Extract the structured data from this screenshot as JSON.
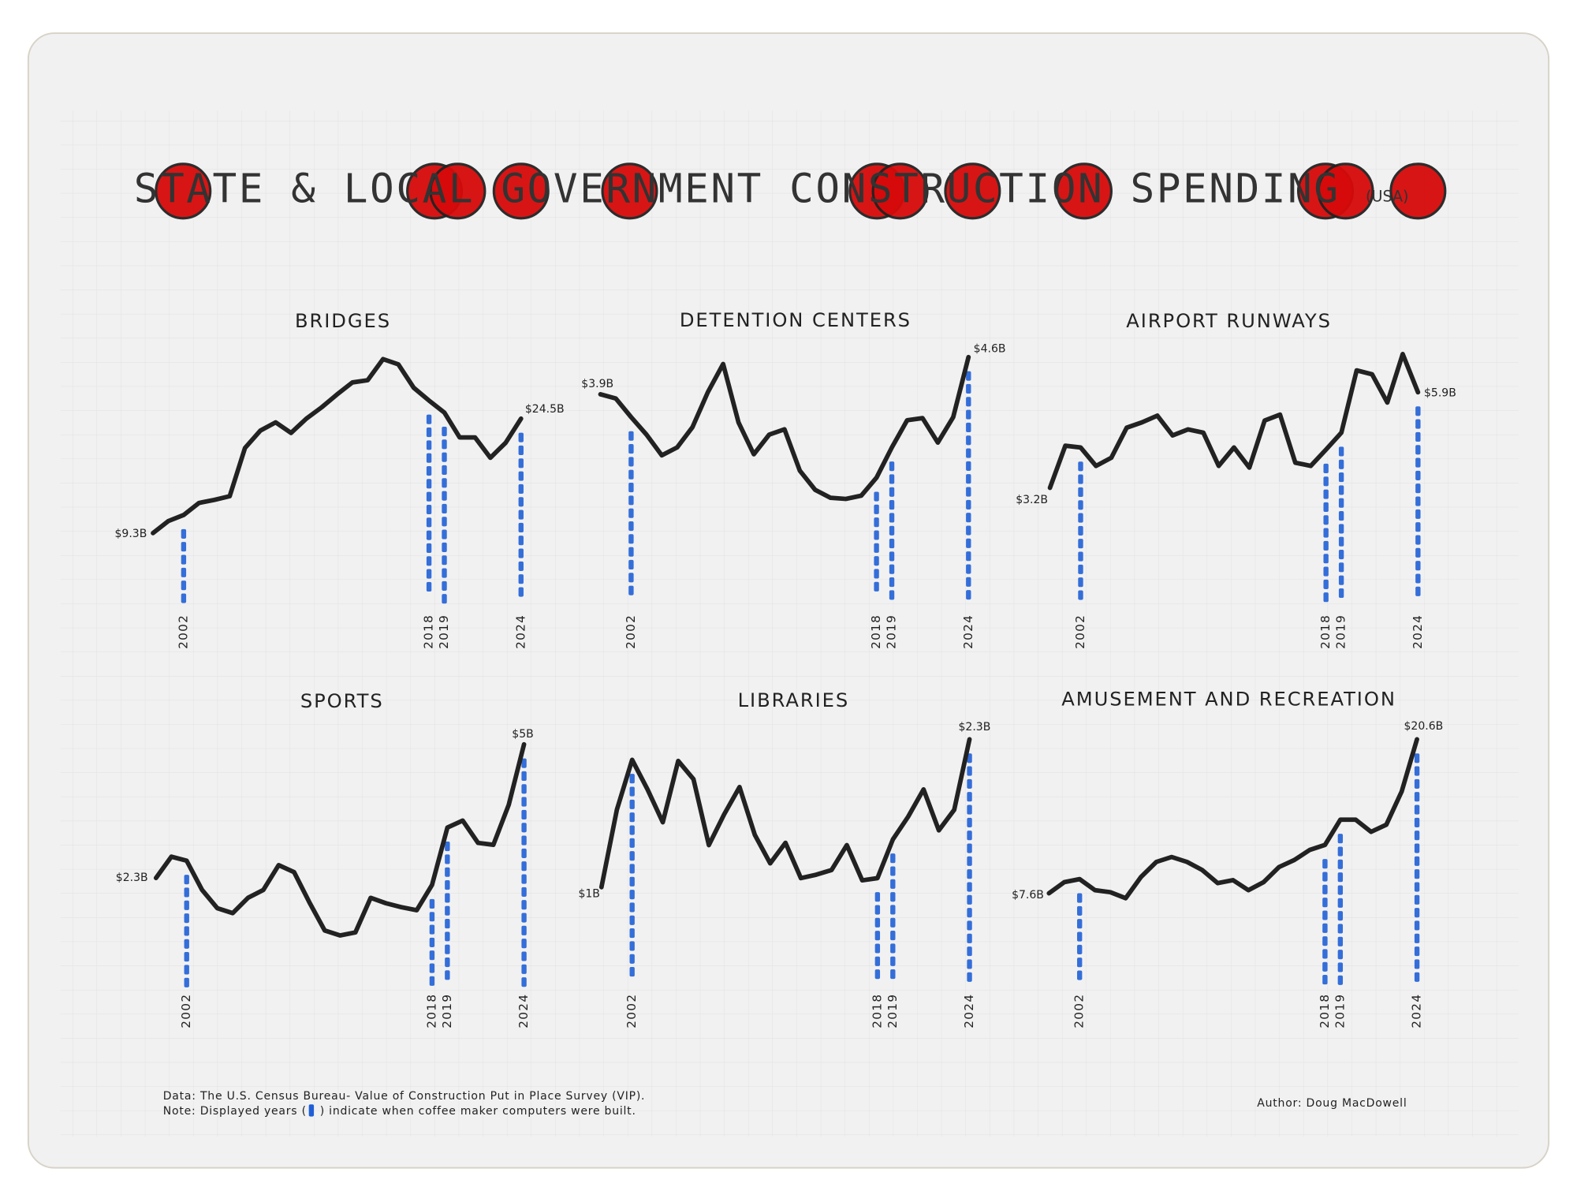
{
  "header": {
    "title": "STATE & LOCAL GOVERNMENT CONSTRUCTION SPENDING",
    "suffix": "(USA)"
  },
  "chart_data": [
    {
      "type": "line",
      "title": "BRIDGES",
      "color": "#222222",
      "year_color": "#1f5fd6",
      "categories": [
        null,
        null,
        "2002",
        null,
        null,
        null,
        null,
        null,
        null,
        null,
        null,
        null,
        null,
        null,
        null,
        null,
        null,
        null,
        "2018",
        "2019",
        null,
        null,
        null,
        null,
        "2024"
      ],
      "values": [
        9.3,
        10.9,
        11.7,
        13.3,
        13.7,
        14.2,
        20.6,
        22.9,
        24.0,
        22.6,
        24.5,
        26.0,
        27.7,
        29.3,
        29.6,
        32.4,
        31.7,
        28.6,
        26.9,
        25.3,
        22.0,
        22.0,
        19.3,
        21.3,
        24.5
      ],
      "value_labels": [
        "$9.3B",
        null,
        null,
        null,
        null,
        null,
        null,
        null,
        null,
        null,
        null,
        null,
        null,
        null,
        null,
        null,
        null,
        null,
        null,
        null,
        null,
        null,
        null,
        null,
        "$24.5B"
      ]
    },
    {
      "type": "line",
      "title": "DETENTION CENTERS",
      "color": "#222222",
      "year_color": "#1f5fd6",
      "categories": [
        null,
        null,
        "2002",
        null,
        null,
        null,
        null,
        null,
        null,
        null,
        null,
        null,
        null,
        null,
        null,
        null,
        null,
        null,
        "2018",
        "2019",
        null,
        null,
        null,
        null,
        "2024"
      ],
      "values": [
        3.9,
        3.82,
        3.47,
        3.14,
        2.75,
        2.9,
        3.28,
        3.94,
        4.47,
        3.37,
        2.77,
        3.14,
        3.24,
        2.46,
        2.1,
        1.95,
        1.93,
        1.99,
        2.33,
        2.9,
        3.41,
        3.45,
        2.99,
        3.47,
        4.6
      ],
      "value_labels": [
        "$3.9B",
        null,
        null,
        null,
        null,
        null,
        null,
        null,
        null,
        null,
        null,
        null,
        null,
        null,
        null,
        null,
        null,
        null,
        null,
        null,
        null,
        null,
        null,
        null,
        "$4.6B"
      ]
    },
    {
      "type": "line",
      "title": "AIRPORT RUNWAYS",
      "color": "#222222",
      "year_color": "#1f5fd6",
      "categories": [
        null,
        null,
        "2002",
        null,
        null,
        null,
        null,
        null,
        null,
        null,
        null,
        null,
        null,
        null,
        null,
        null,
        null,
        null,
        "2018",
        "2019",
        null,
        null,
        null,
        null,
        "2024"
      ],
      "values": [
        3.2,
        4.39,
        4.34,
        3.82,
        4.05,
        4.9,
        5.05,
        5.24,
        4.68,
        4.85,
        4.76,
        3.82,
        4.34,
        3.77,
        5.1,
        5.27,
        3.91,
        3.82,
        4.28,
        4.76,
        6.52,
        6.41,
        5.61,
        6.98,
        5.9
      ],
      "value_labels": [
        "$3.2B",
        null,
        null,
        null,
        null,
        null,
        null,
        null,
        null,
        null,
        null,
        null,
        null,
        null,
        null,
        null,
        null,
        null,
        null,
        null,
        null,
        null,
        null,
        null,
        "$5.9B"
      ]
    },
    {
      "type": "line",
      "title": "SPORTS",
      "color": "#222222",
      "year_color": "#1f5fd6",
      "categories": [
        null,
        null,
        "2002",
        null,
        null,
        null,
        null,
        null,
        null,
        null,
        null,
        null,
        null,
        null,
        null,
        null,
        null,
        null,
        "2018",
        "2019",
        null,
        null,
        null,
        null,
        "2024"
      ],
      "values": [
        2.3,
        2.73,
        2.65,
        2.06,
        1.69,
        1.59,
        1.9,
        2.06,
        2.56,
        2.42,
        1.81,
        1.24,
        1.14,
        1.2,
        1.9,
        1.79,
        1.71,
        1.65,
        2.16,
        3.32,
        3.46,
        3.01,
        2.97,
        3.78,
        5
      ],
      "value_labels": [
        "$2.3B",
        null,
        null,
        null,
        null,
        null,
        null,
        null,
        null,
        null,
        null,
        null,
        null,
        null,
        null,
        null,
        null,
        null,
        null,
        null,
        null,
        null,
        null,
        null,
        "$5B"
      ]
    },
    {
      "type": "line",
      "title": "LIBRARIES",
      "color": "#222222",
      "year_color": "#1f5fd6",
      "categories": [
        null,
        null,
        "2002",
        null,
        null,
        null,
        null,
        null,
        null,
        null,
        null,
        null,
        null,
        null,
        null,
        null,
        null,
        null,
        "2018",
        "2019",
        null,
        null,
        null,
        null,
        "2024"
      ],
      "values": [
        1,
        1.68,
        2.12,
        1.86,
        1.57,
        2.11,
        1.95,
        1.37,
        1.64,
        1.88,
        1.46,
        1.21,
        1.39,
        1.08,
        1.11,
        1.15,
        1.37,
        1.06,
        1.08,
        1.42,
        1.62,
        1.86,
        1.5,
        1.68,
        2.3
      ],
      "value_labels": [
        "$1B",
        null,
        null,
        null,
        null,
        null,
        null,
        null,
        null,
        null,
        null,
        null,
        null,
        null,
        null,
        null,
        null,
        null,
        null,
        null,
        null,
        null,
        null,
        null,
        "$2.3B"
      ]
    },
    {
      "type": "line",
      "title": "AMUSEMENT AND RECREATION",
      "color": "#222222",
      "year_color": "#1f5fd6",
      "categories": [
        null,
        null,
        "2002",
        null,
        null,
        null,
        null,
        null,
        null,
        null,
        null,
        null,
        null,
        null,
        null,
        null,
        null,
        null,
        "2018",
        "2019",
        null,
        null,
        null,
        null,
        "2024"
      ],
      "values": [
        7.6,
        8.54,
        8.79,
        7.86,
        7.69,
        7.18,
        8.97,
        10.25,
        10.66,
        10.25,
        9.56,
        8.45,
        8.71,
        7.86,
        8.54,
        9.81,
        10.41,
        11.26,
        11.68,
        13.81,
        13.81,
        12.79,
        13.39,
        16.2,
        20.6
      ],
      "value_labels": [
        "$7.6B",
        null,
        null,
        null,
        null,
        null,
        null,
        null,
        null,
        null,
        null,
        null,
        null,
        null,
        null,
        null,
        null,
        null,
        null,
        null,
        null,
        null,
        null,
        null,
        "$20.6B"
      ]
    }
  ],
  "footer": {
    "source": "Data: The U.S. Census Bureau- Value of Construction Put in Place Survey (VIP).",
    "note_before": "Note: Displayed years (",
    "note_after": ") indicate when coffee maker computers were built.",
    "author": "Author: Doug MacDowell"
  }
}
